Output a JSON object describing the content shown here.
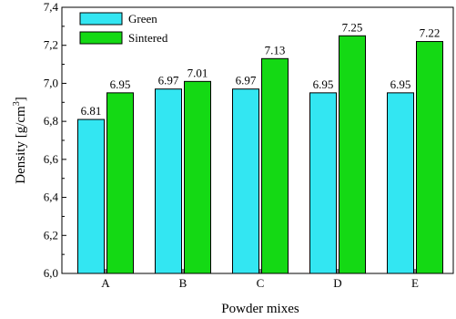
{
  "chart_data": {
    "type": "bar",
    "title": "",
    "xlabel": "Powder mixes",
    "ylabel_main": "Density [g/cm",
    "ylabel_sup": "3",
    "ylabel_end": "]",
    "categories": [
      "A",
      "B",
      "C",
      "D",
      "E"
    ],
    "series": [
      {
        "name": "Green",
        "color": "#33e6f2",
        "values": [
          6.81,
          6.97,
          6.97,
          6.95,
          6.95
        ],
        "labels": [
          "6.81",
          "6.97",
          "6.97",
          "6.95",
          "6.95"
        ]
      },
      {
        "name": "Sintered",
        "color": "#14d914",
        "values": [
          6.95,
          7.01,
          7.13,
          7.25,
          7.22
        ],
        "labels": [
          "6.95",
          "7.01",
          "7.13",
          "7.25",
          "7.22"
        ]
      }
    ],
    "ylim": [
      6.0,
      7.4
    ],
    "yticks": [
      6.0,
      6.2,
      6.4,
      6.6,
      6.8,
      7.0,
      7.2,
      7.4
    ],
    "ytick_labels": [
      "6,0",
      "6,2",
      "6,4",
      "6,6",
      "6,8",
      "7,0",
      "7,2",
      "7,4"
    ],
    "legend_position": "top-left",
    "grid": false
  }
}
